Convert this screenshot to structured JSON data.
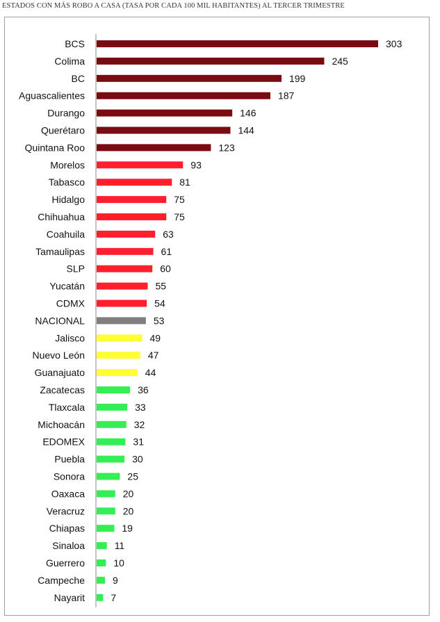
{
  "chart_data": {
    "type": "bar",
    "orientation": "horizontal",
    "title": "ESTADOS CON MÁS ROBO A CASA (TASA POR CADA 100 MIL HABITANTES) AL TERCER TRIMESTRE",
    "xlabel": "",
    "ylabel": "",
    "grid": false,
    "legend": "none",
    "xlim": [
      0,
      303
    ],
    "colors": {
      "dark_red": "#7b0b12",
      "red": "#ff1f2d",
      "gray": "#7f7f7f",
      "yellow": "#ffff33",
      "green": "#33ee55"
    },
    "categories": [
      "BCS",
      "Colima",
      "BC",
      "Aguascalientes",
      "Durango",
      "Querétaro",
      "Quintana Roo",
      "Morelos",
      "Tabasco",
      "Hidalgo",
      "Chihuahua",
      "Coahuila",
      "Tamaulipas",
      "SLP",
      "Yucatán",
      "CDMX",
      "NACIONAL",
      "Jalisco",
      "Nuevo León",
      "Guanajuato",
      "Zacatecas",
      "Tlaxcala",
      "Michoacán",
      "EDOMEX",
      "Puebla",
      "Sonora",
      "Oaxaca",
      "Veracruz",
      "Chiapas",
      "Sinaloa",
      "Guerrero",
      "Campeche",
      "Nayarit"
    ],
    "values": [
      303,
      245,
      199,
      187,
      146,
      144,
      123,
      93,
      81,
      75,
      75,
      63,
      61,
      60,
      55,
      54,
      53,
      49,
      47,
      44,
      36,
      33,
      32,
      31,
      30,
      25,
      20,
      20,
      19,
      11,
      10,
      9,
      7
    ],
    "bar_colors": [
      "dark_red",
      "dark_red",
      "dark_red",
      "dark_red",
      "dark_red",
      "dark_red",
      "dark_red",
      "red",
      "red",
      "red",
      "red",
      "red",
      "red",
      "red",
      "red",
      "red",
      "gray",
      "yellow",
      "yellow",
      "yellow",
      "green",
      "green",
      "green",
      "green",
      "green",
      "green",
      "green",
      "green",
      "green",
      "green",
      "green",
      "green",
      "green"
    ]
  }
}
